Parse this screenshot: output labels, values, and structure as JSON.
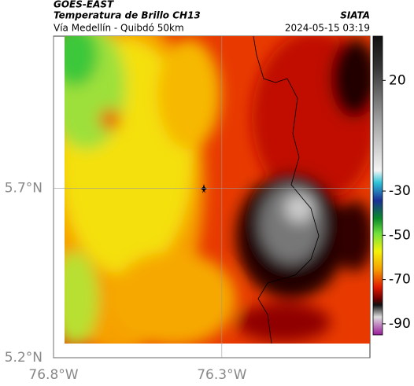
{
  "header": {
    "source": "GOES-EAST",
    "title": "Temperatura de Brillo CH13",
    "brand": "SIATA",
    "subtitle": "Vía Medellín - Quibdó 50km",
    "timestamp": "2024-05-15 03:19"
  },
  "map": {
    "xlim": [
      -76.8,
      -75.86
    ],
    "ylim": [
      5.2,
      6.15
    ],
    "xticks": [
      {
        "value": -76.8,
        "label": "76.8°W"
      },
      {
        "value": -76.3,
        "label": "76.3°W"
      }
    ],
    "yticks": [
      {
        "value": 5.7,
        "label": "5.7°N"
      },
      {
        "value": 5.2,
        "label": "5.2°N"
      }
    ],
    "grid": true
  },
  "colorbar": {
    "lim": [
      -95,
      40
    ],
    "ticks": [
      20,
      -30,
      -50,
      -70,
      -90
    ]
  }
}
